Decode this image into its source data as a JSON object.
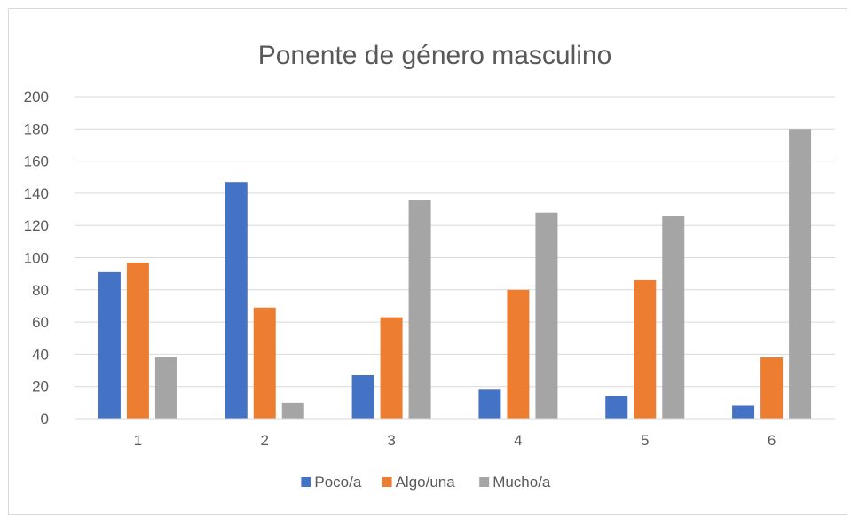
{
  "chart_data": {
    "type": "bar",
    "title": "Ponente de género masculino",
    "xlabel": "",
    "ylabel": "",
    "categories": [
      "1",
      "2",
      "3",
      "4",
      "5",
      "6"
    ],
    "series": [
      {
        "name": "Poco/a",
        "color": "#4472c4",
        "values": [
          91,
          147,
          27,
          18,
          14,
          8
        ]
      },
      {
        "name": "Algo/una",
        "color": "#ed7d31",
        "values": [
          97,
          69,
          63,
          80,
          86,
          38
        ]
      },
      {
        "name": "Mucho/a",
        "color": "#a5a5a5",
        "values": [
          38,
          10,
          136,
          128,
          126,
          180
        ]
      }
    ],
    "ylim": [
      0,
      200
    ],
    "yticks": [
      0,
      20,
      40,
      60,
      80,
      100,
      120,
      140,
      160,
      180,
      200
    ],
    "grid": true,
    "legend_position": "bottom"
  }
}
